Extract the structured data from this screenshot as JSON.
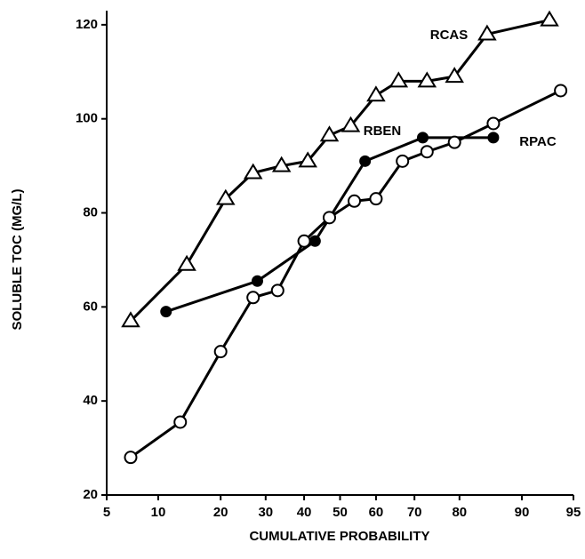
{
  "chart_data": {
    "type": "line",
    "y_label": "SOLUBLE TOC (MG/L)",
    "x_label": "CUMULATIVE PROBABILITY",
    "x_scale": "probability",
    "xlim": [
      5,
      95
    ],
    "xticks": [
      5,
      10,
      20,
      30,
      40,
      50,
      60,
      70,
      80,
      90,
      95
    ],
    "ylim": [
      20,
      123
    ],
    "yticks": [
      20,
      40,
      60,
      80,
      100,
      120
    ],
    "grid": false,
    "series": [
      {
        "name": "RCAS",
        "color": "#000000",
        "marker": "open-triangle",
        "x": [
          7,
          14,
          21,
          27,
          34,
          41,
          47,
          53,
          60,
          66,
          73,
          79,
          85,
          93
        ],
        "values": [
          57,
          69,
          83,
          88.5,
          90,
          91,
          96.5,
          98.5,
          105,
          108,
          108,
          109,
          118,
          121
        ]
      },
      {
        "name": "RBEN",
        "color": "#000000",
        "marker": "filled-circle",
        "x": [
          11,
          28,
          43,
          57,
          72,
          86
        ],
        "values": [
          59,
          65.5,
          74,
          91,
          96,
          96
        ]
      },
      {
        "name": "RPAC",
        "color": "#000000",
        "marker": "open-circle",
        "x": [
          7,
          13,
          20,
          27,
          33,
          40,
          47,
          54,
          60,
          67,
          73,
          79,
          86,
          94
        ],
        "values": [
          28,
          35.5,
          50.5,
          62,
          63.5,
          74,
          79,
          82.5,
          83,
          91,
          93,
          95,
          99,
          106
        ]
      }
    ]
  }
}
